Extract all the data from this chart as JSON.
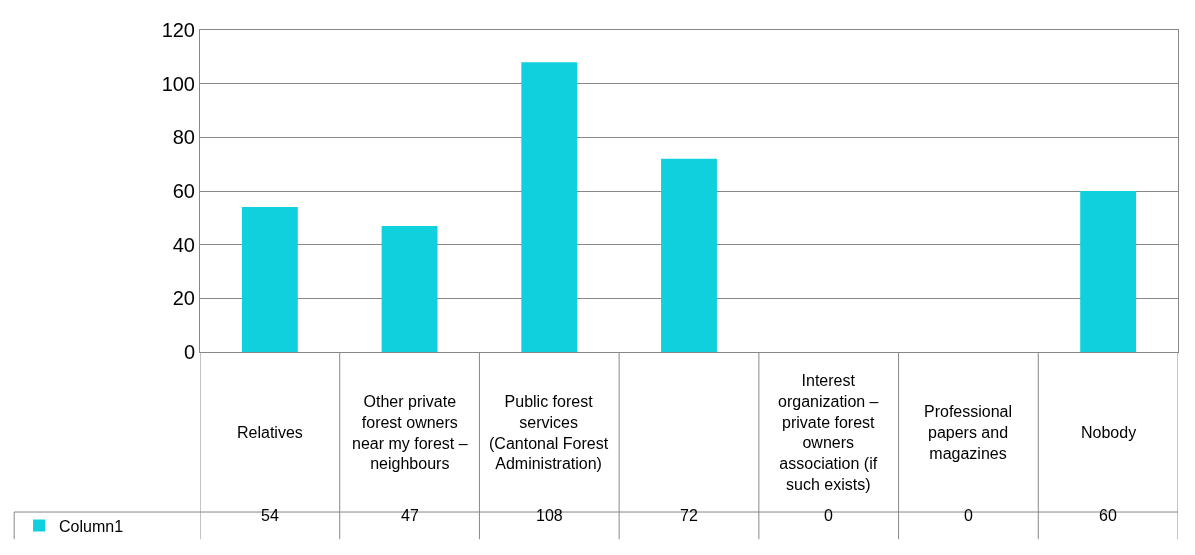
{
  "chart_data": {
    "type": "bar",
    "categories": [
      "Relatives",
      "Other private forest owners near my forest – neighbours",
      "Public forest services (Cantonal Forest Administration)",
      null,
      "Interest organization – private forest owners association (if such exists)",
      "Professional papers and magazines",
      "Nobody"
    ],
    "series": [
      {
        "name": "Column1",
        "color": "#0fd0dc",
        "values": [
          54,
          47,
          108,
          72,
          0,
          0,
          60
        ]
      }
    ],
    "ylim": [
      0,
      120
    ],
    "yticks": [
      0,
      20,
      40,
      60,
      80,
      100,
      120
    ],
    "grid": "y",
    "legend": "bottom left",
    "data_labels": true
  }
}
